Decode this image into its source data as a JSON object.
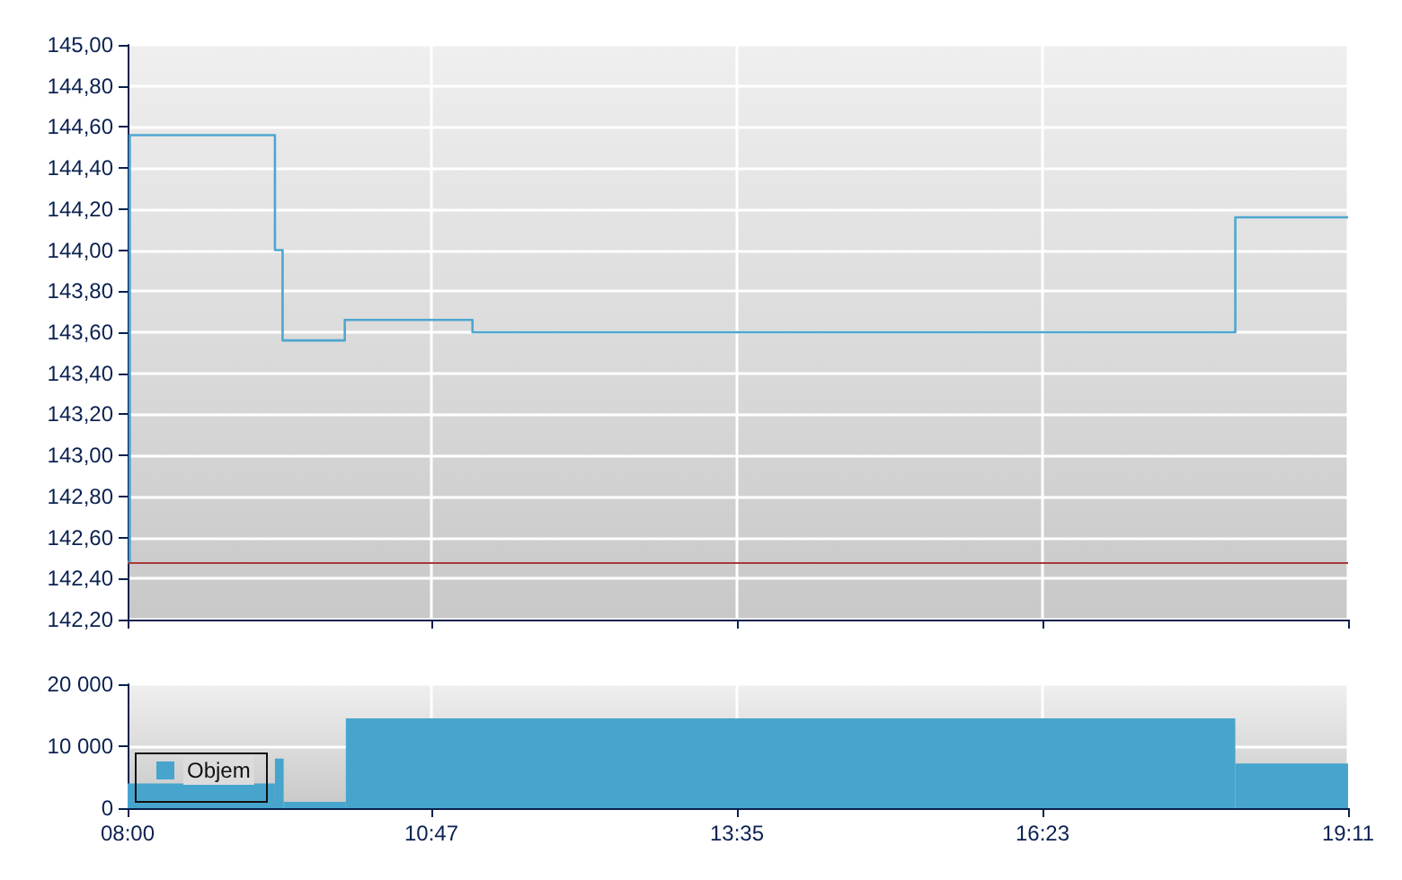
{
  "chart_data": [
    {
      "type": "step",
      "x": [
        8.0,
        8.02,
        9.35,
        9.42,
        9.99,
        11.16,
        18.15,
        19.1833
      ],
      "series": [
        {
          "color": "#4ea6d0",
          "values": [
            142.48,
            144.56,
            144.0,
            143.56,
            143.66,
            143.6,
            144.16,
            144.16
          ]
        }
      ],
      "xlim": [
        8,
        19.1833
      ],
      "xticks": [
        {
          "value": 8,
          "label": null
        },
        {
          "value": 10.7833,
          "label": null
        },
        {
          "value": 13.5833,
          "label": null
        },
        {
          "value": 16.3833,
          "label": null
        },
        {
          "value": 19.1833,
          "label": null
        }
      ],
      "ylim": [
        142.2,
        145.0
      ],
      "yticks": [
        {
          "value": 142.2,
          "label": "142,20"
        },
        {
          "value": 142.4,
          "label": "142,40"
        },
        {
          "value": 142.6,
          "label": "142,60"
        },
        {
          "value": 142.8,
          "label": "142,80"
        },
        {
          "value": 143.0,
          "label": "143,00"
        },
        {
          "value": 143.2,
          "label": "143,20"
        },
        {
          "value": 143.4,
          "label": "143,40"
        },
        {
          "value": 143.6,
          "label": "143,60"
        },
        {
          "value": 143.8,
          "label": "143,80"
        },
        {
          "value": 144.0,
          "label": "144,00"
        },
        {
          "value": 144.2,
          "label": "144,20"
        },
        {
          "value": 144.4,
          "label": "144,40"
        },
        {
          "value": 144.6,
          "label": "144,60"
        },
        {
          "value": 144.8,
          "label": "144,80"
        },
        {
          "value": 145.0,
          "label": "145,00"
        }
      ],
      "ref_lines": [
        {
          "axis": "y",
          "value": 142.48,
          "color": "#a83a3a"
        }
      ],
      "grid": true,
      "legend": false,
      "tick_labels": "y"
    },
    {
      "type": "histogram",
      "bins": [
        8.0,
        9.35,
        9.43,
        10.0,
        18.15,
        19.1833
      ],
      "series": [
        {
          "name": "Objem",
          "color": "#47a5cd",
          "values": [
            4000,
            8000,
            1000,
            14500,
            7200
          ]
        }
      ],
      "xlim": [
        8,
        19.1833
      ],
      "xticks": [
        {
          "value": 8,
          "label": "08:00"
        },
        {
          "value": 10.7833,
          "label": "10:47"
        },
        {
          "value": 13.5833,
          "label": "13:35"
        },
        {
          "value": 16.3833,
          "label": "16:23"
        },
        {
          "value": 19.1833,
          "label": "19:11"
        }
      ],
      "ylim": [
        0,
        20000
      ],
      "yticks": [
        {
          "value": 0,
          "label": "0"
        },
        {
          "value": 10000,
          "label": "10 000"
        },
        {
          "value": 20000,
          "label": "20 000"
        }
      ],
      "grid": true,
      "legend": "bottom left"
    }
  ]
}
